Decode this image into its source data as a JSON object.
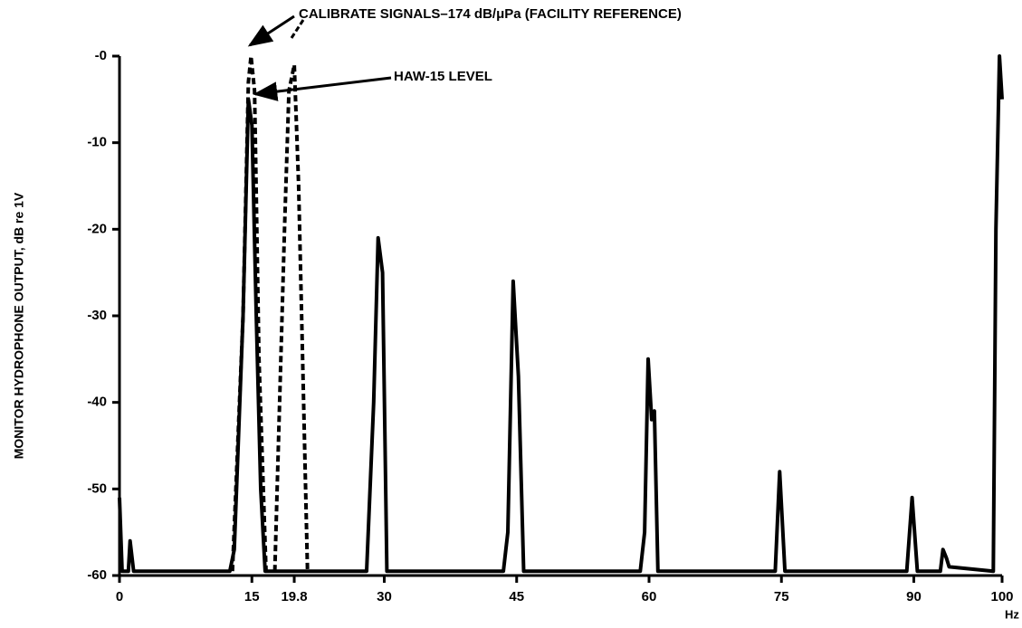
{
  "chart_data": {
    "type": "line",
    "annotations": [
      "CALIBRATE SIGNALS–174 dB/μPa (FACILITY REFERENCE)",
      "HAW-15 LEVEL"
    ],
    "x_label": "Hz",
    "y_label": "MONITOR HYDROPHONE OUTPUT, dB re 1V",
    "xlim": [
      0,
      100
    ],
    "ylim": [
      -60,
      0
    ],
    "xticks": [
      0,
      15,
      19.8,
      30,
      45,
      60,
      75,
      90,
      100
    ],
    "yticks": [
      {
        "value": 0,
        "label": "-0"
      },
      -10,
      -20,
      -30,
      -40,
      -50,
      -60
    ],
    "series": [
      {
        "color": "#000000",
        "dash": false,
        "x": [
          0,
          0.3,
          1,
          1.2,
          1.6,
          12.5,
          13,
          14,
          14.6,
          15,
          15.5,
          16,
          16.5,
          28,
          28.8,
          29.3,
          29.8,
          30.3,
          43.5,
          44,
          44.6,
          45.2,
          45.8,
          59,
          59.5,
          59.9,
          60.3,
          60.6,
          61,
          74.3,
          74.8,
          75.4,
          89.2,
          89.8,
          90.4,
          93,
          93.3,
          93.7,
          94,
          99,
          99.3,
          99.7,
          100
        ],
        "values": [
          -51,
          -59.5,
          -59.5,
          -56,
          -59.5,
          -59.5,
          -57,
          -30,
          -5,
          -8,
          -30,
          -50,
          -59.5,
          -59.5,
          -40,
          -21,
          -25,
          -59.5,
          -59.5,
          -55,
          -26,
          -37,
          -59.5,
          -59.5,
          -55,
          -35,
          -42,
          -41,
          -59.5,
          -59.5,
          -48,
          -59.5,
          -59.5,
          -51,
          -59.5,
          -59.5,
          -57,
          -58,
          -59,
          -59.5,
          -20,
          0,
          -5
        ]
      },
      {
        "color": "#000000",
        "dash": true,
        "x": [
          12.8,
          14,
          14.6,
          14.9,
          15.3,
          15.8,
          16.6,
          null,
          17.6,
          18.7,
          19.2,
          19.8,
          20.3,
          21.3
        ],
        "values": [
          -59.5,
          -30,
          -3,
          0,
          -4,
          -35,
          -59.5,
          null,
          -59.5,
          -20,
          -4,
          -1,
          -15,
          -59.5
        ]
      }
    ]
  }
}
